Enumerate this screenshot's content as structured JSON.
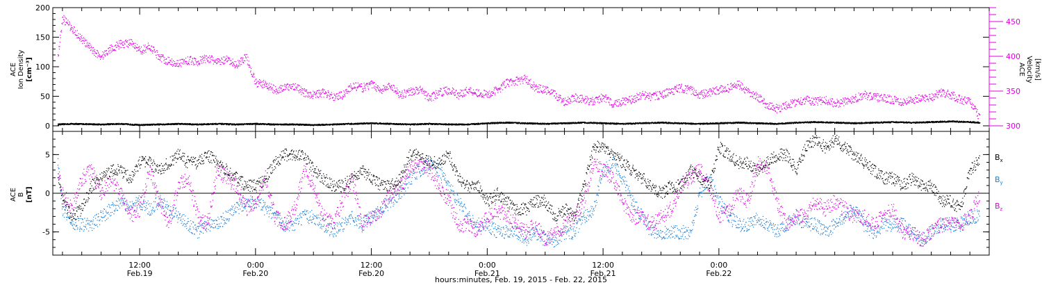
{
  "colors": {
    "density": "#000000",
    "velocity": "#e000e0",
    "bx": "#000000",
    "by": "#1a7fd6",
    "bz": "#e000e0",
    "axis": "#000000",
    "background": "#ffffff"
  },
  "chart_data": [
    {
      "type": "scatter",
      "panel": "top",
      "title": "",
      "ylabel_left": [
        "ACE",
        "Ion Density",
        "[cm⁻³]"
      ],
      "ylabel_right": [
        "ACE",
        "Velocity",
        "[km/s]"
      ],
      "ylim_left": [
        0,
        200
      ],
      "ylim_right": [
        300,
        470
      ],
      "yticks_left": [
        "0",
        "50",
        "100",
        "150",
        "200"
      ],
      "yticks_right": [
        "300",
        "350",
        "400",
        "450"
      ],
      "x_unit": "hours since 2015-02-19 00:00 UT",
      "xlim": [
        3,
        100
      ],
      "series": [
        {
          "color_key": "velocity",
          "axis": "right",
          "x": [
            3.5,
            4,
            5,
            6,
            7,
            8,
            9,
            10,
            11,
            12,
            13,
            14,
            15,
            16,
            17,
            18,
            19,
            20,
            21,
            22,
            23,
            24,
            25,
            26,
            27,
            28,
            29,
            30,
            31,
            32,
            33,
            34,
            35,
            36,
            37,
            38,
            39,
            40,
            41,
            42,
            43,
            44,
            45,
            46,
            47,
            48,
            49,
            50,
            51,
            52,
            53,
            54,
            55,
            56,
            57,
            58,
            59,
            60,
            61,
            62,
            63,
            64,
            65,
            66,
            67,
            68,
            69,
            70,
            71,
            72,
            73,
            74,
            75,
            76,
            77,
            78,
            79,
            80,
            81,
            82,
            83,
            84,
            85,
            86,
            87,
            88,
            89,
            90,
            91,
            92,
            93,
            94,
            95,
            96,
            97,
            98,
            99
          ],
          "y": [
            400,
            455,
            440,
            425,
            410,
            400,
            412,
            418,
            420,
            408,
            415,
            400,
            393,
            390,
            395,
            393,
            398,
            392,
            395,
            388,
            400,
            362,
            360,
            352,
            355,
            358,
            348,
            345,
            348,
            342,
            345,
            358,
            355,
            360,
            352,
            358,
            345,
            350,
            352,
            340,
            348,
            352,
            345,
            352,
            348,
            345,
            352,
            362,
            365,
            368,
            355,
            352,
            345,
            335,
            342,
            338,
            335,
            342,
            332,
            335,
            338,
            345,
            342,
            345,
            350,
            355,
            352,
            345,
            348,
            352,
            355,
            360,
            348,
            342,
            330,
            325,
            330,
            335,
            338,
            335,
            338,
            332,
            335,
            340,
            345,
            342,
            340,
            338,
            335,
            338,
            340,
            342,
            348,
            345,
            338,
            335,
            312
          ]
        },
        {
          "color_key": "density",
          "axis": "left",
          "x": [
            3.5,
            5,
            8,
            10,
            12,
            14,
            16,
            18,
            20,
            22,
            24,
            26,
            28,
            30,
            32,
            34,
            36,
            38,
            40,
            42,
            44,
            46,
            48,
            50,
            52,
            54,
            56,
            58,
            60,
            62,
            64,
            66,
            68,
            70,
            72,
            74,
            76,
            78,
            80,
            82,
            84,
            86,
            88,
            90,
            92,
            94,
            96,
            98,
            99
          ],
          "y": [
            3,
            4,
            3,
            4,
            2,
            3,
            4,
            3,
            4,
            3,
            4,
            3,
            3,
            2,
            3,
            4,
            5,
            4,
            3,
            4,
            3,
            3,
            5,
            6,
            5,
            4,
            5,
            6,
            5,
            4,
            5,
            6,
            5,
            4,
            5,
            6,
            5,
            4,
            6,
            7,
            6,
            5,
            6,
            7,
            6,
            7,
            8,
            7,
            6
          ]
        }
      ]
    },
    {
      "type": "scatter",
      "panel": "bottom",
      "title": "",
      "ylabel_left": [
        "ACE",
        "B",
        "[nT]"
      ],
      "ylim": [
        -8,
        8
      ],
      "yticks_left": [
        "-5",
        "0",
        "5"
      ],
      "legend": [
        "Bx",
        "By",
        "Bz"
      ],
      "legend_placement": "right",
      "x_unit": "hours since 2015-02-19 00:00 UT",
      "xlim": [
        3,
        100
      ],
      "series": [
        {
          "name": "Bx",
          "color_key": "bx",
          "x": [
            3.5,
            4,
            5,
            6,
            7,
            8,
            9,
            10,
            11,
            12,
            13,
            14,
            15,
            16,
            17,
            18,
            19,
            20,
            21,
            22,
            23,
            24,
            25,
            26,
            27,
            28,
            29,
            30,
            31,
            32,
            33,
            34,
            35,
            36,
            37,
            38,
            39,
            40,
            41,
            42,
            43,
            44,
            45,
            46,
            47,
            48,
            49,
            50,
            51,
            52,
            53,
            54,
            55,
            56,
            57,
            58,
            59,
            60,
            61,
            62,
            63,
            64,
            65,
            66,
            67,
            68,
            69,
            70,
            71,
            72,
            73,
            74,
            75,
            76,
            77,
            78,
            79,
            80,
            81,
            82,
            83,
            84,
            85,
            86,
            87,
            88,
            89,
            90,
            91,
            92,
            93,
            94,
            95,
            96,
            97,
            98,
            99
          ],
          "y": [
            2,
            -1,
            -3,
            -2,
            1,
            2,
            3,
            3,
            2,
            4,
            4,
            3,
            4,
            5,
            4,
            4,
            5,
            4,
            3,
            2,
            1,
            1,
            2,
            4,
            5,
            5,
            5,
            3,
            2,
            1,
            1,
            2,
            3,
            2,
            1,
            1,
            2,
            5,
            5,
            4,
            4,
            5,
            2,
            1,
            1,
            -1,
            0,
            -1,
            -2,
            -2,
            -1,
            -1,
            -3,
            -2,
            -3,
            1,
            6,
            6,
            5,
            4,
            3,
            2,
            1,
            0,
            1,
            1,
            3,
            2,
            1,
            6,
            5,
            4,
            4,
            3,
            4,
            5,
            5,
            3,
            6,
            7,
            6,
            7,
            6,
            5,
            4,
            3,
            2,
            2,
            1,
            2,
            1,
            1,
            -1,
            -1,
            -2,
            3,
            4.5
          ]
        },
        {
          "name": "By",
          "color_key": "by",
          "x": [
            3.5,
            4,
            5,
            6,
            7,
            8,
            9,
            10,
            11,
            12,
            13,
            14,
            15,
            16,
            17,
            18,
            19,
            20,
            21,
            22,
            23,
            24,
            25,
            26,
            27,
            28,
            29,
            30,
            31,
            32,
            33,
            34,
            35,
            36,
            37,
            38,
            39,
            40,
            41,
            42,
            43,
            44,
            45,
            46,
            47,
            48,
            49,
            50,
            51,
            52,
            53,
            54,
            55,
            56,
            57,
            58,
            59,
            60,
            61,
            62,
            63,
            64,
            65,
            66,
            67,
            68,
            69,
            70,
            71,
            72,
            73,
            74,
            75,
            76,
            77,
            78,
            79,
            80,
            81,
            82,
            83,
            84,
            85,
            86,
            87,
            88,
            89,
            90,
            91,
            92,
            93,
            94,
            95,
            96,
            97,
            98,
            99
          ],
          "y": [
            4,
            -2,
            -4,
            -4,
            -4,
            -3,
            -2,
            -1,
            -2,
            -1,
            -2,
            -1,
            -2,
            -3,
            -4,
            -5,
            -4,
            -4,
            -3,
            -2,
            -1,
            -1,
            -2,
            -3,
            -4,
            -4,
            -3,
            -3,
            -4,
            -5,
            -4,
            -3,
            -4,
            -3,
            -2,
            -1,
            0,
            2,
            3,
            4,
            3,
            1,
            -1,
            -3,
            -4,
            -4,
            -5,
            -5,
            -5,
            -6,
            -5,
            -6,
            -6,
            -5,
            -5,
            -3,
            -2,
            3,
            4,
            2,
            -1,
            -3,
            -5,
            -5,
            -5,
            -5,
            -5,
            0,
            2,
            -1,
            -3,
            -4,
            -4,
            -3,
            -4,
            -5,
            -4,
            -3,
            -4,
            -4,
            -5,
            -4,
            -3,
            -2,
            -4,
            -5,
            -4,
            -4,
            -4,
            -5,
            -6,
            -5,
            -4,
            -4,
            -4,
            -3,
            -3
          ]
        },
        {
          "name": "Bz",
          "color_key": "bz",
          "x": [
            3.5,
            4,
            5,
            6,
            7,
            8,
            9,
            10,
            11,
            12,
            13,
            14,
            15,
            16,
            17,
            18,
            19,
            20,
            21,
            22,
            23,
            24,
            25,
            26,
            27,
            28,
            29,
            30,
            31,
            32,
            33,
            34,
            35,
            36,
            37,
            38,
            39,
            40,
            41,
            42,
            43,
            44,
            45,
            46,
            47,
            48,
            49,
            50,
            51,
            52,
            53,
            54,
            55,
            56,
            57,
            58,
            59,
            60,
            61,
            62,
            63,
            64,
            65,
            66,
            67,
            68,
            69,
            70,
            71,
            72,
            73,
            74,
            75,
            76,
            77,
            78,
            79,
            80,
            81,
            82,
            83,
            84,
            85,
            86,
            87,
            88,
            89,
            90,
            91,
            92,
            93,
            94,
            95,
            96,
            97,
            98,
            99
          ],
          "y": [
            3,
            0,
            -2,
            2,
            3,
            0,
            2,
            0,
            -3,
            -2,
            3,
            -1,
            -4,
            1,
            2,
            -3,
            -4,
            3,
            2,
            1,
            -2,
            -1,
            2,
            -3,
            -4,
            -2,
            3,
            1,
            -3,
            -4,
            -1,
            2,
            -4,
            -3,
            -2,
            0,
            1,
            3,
            4,
            3,
            1,
            -1,
            -4,
            -4,
            -5,
            -3,
            -2,
            -3,
            -4,
            -5,
            -4,
            -6,
            -5,
            -4,
            -3,
            -1,
            4,
            3,
            2,
            -1,
            -3,
            -3,
            -4,
            -3,
            -2,
            1,
            2,
            3,
            1,
            -3,
            -2,
            0,
            -1,
            4,
            3,
            -1,
            -4,
            -3,
            -3,
            -1,
            -2,
            -1,
            -2,
            -3,
            -3,
            -4,
            -3,
            -2,
            -5,
            -5,
            -6,
            -5,
            -4,
            -4,
            -4,
            -3,
            0
          ]
        }
      ]
    }
  ],
  "x_axis": {
    "label": "hours:minutes, Feb. 19, 2015 - Feb. 22, 2015",
    "ticks": [
      {
        "x": 12,
        "time": "12:00",
        "date": "Feb.19"
      },
      {
        "x": 24,
        "time": "0:00",
        "date": "Feb.20"
      },
      {
        "x": 36,
        "time": "12:00",
        "date": "Feb.20"
      },
      {
        "x": 48,
        "time": "0:00",
        "date": "Feb.21"
      },
      {
        "x": 60,
        "time": "12:00",
        "date": "Feb.21"
      },
      {
        "x": 72,
        "time": "0:00",
        "date": "Feb.22"
      }
    ]
  },
  "legend_labels": {
    "bx": "B",
    "bx_sub": "x",
    "by": "B",
    "by_sub": "y",
    "bz": "B",
    "bz_sub": "z"
  }
}
